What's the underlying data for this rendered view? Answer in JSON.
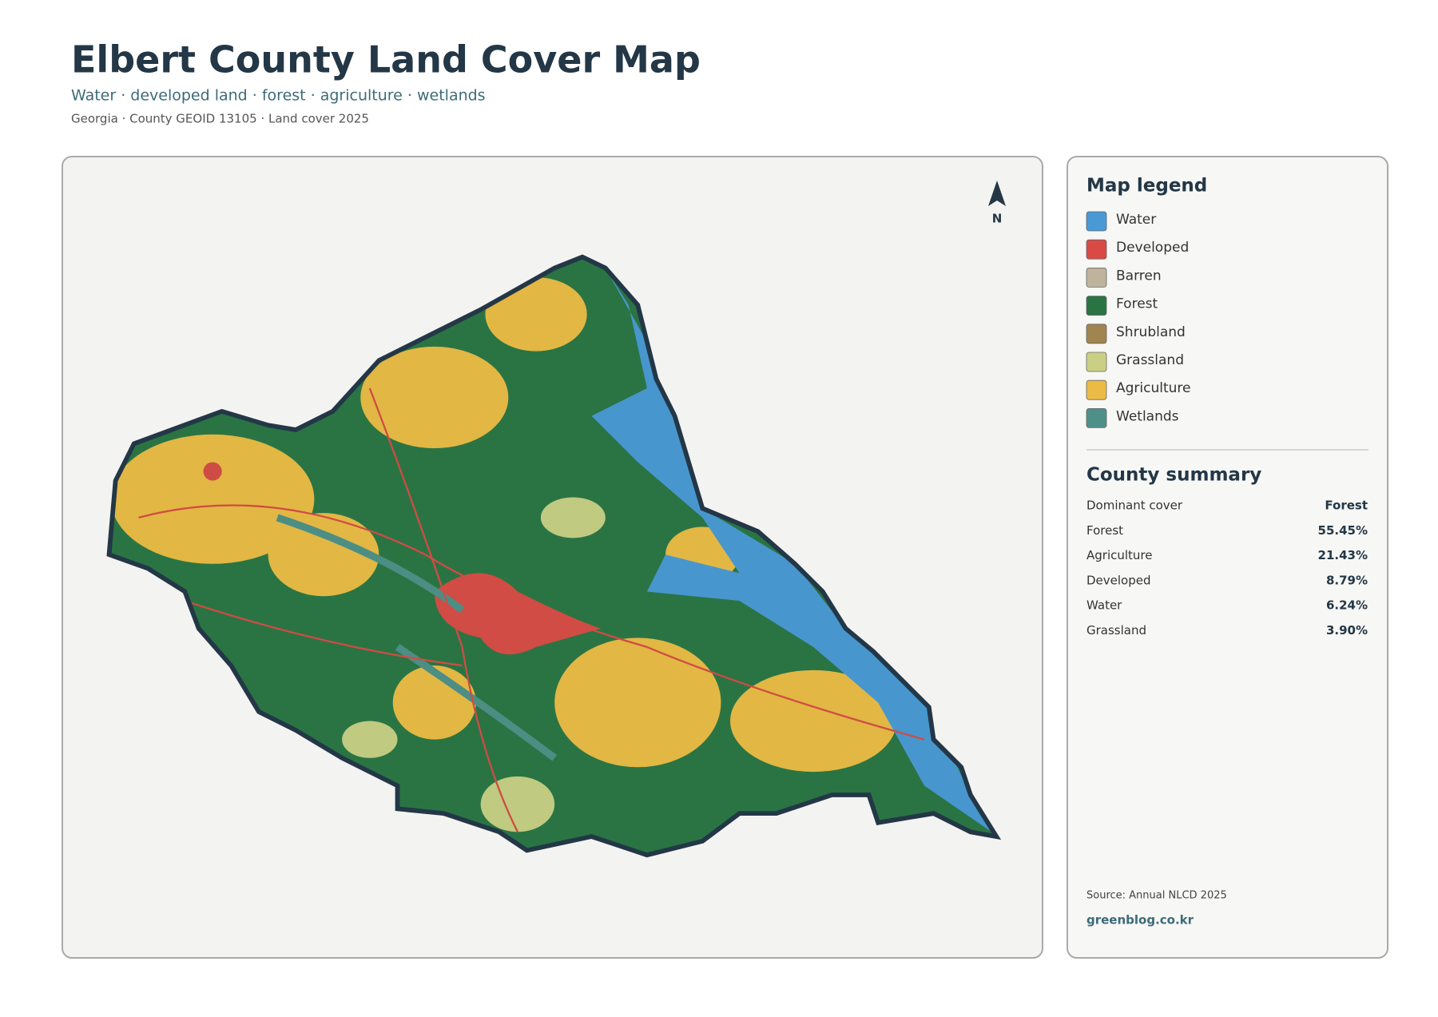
{
  "header": {
    "title": "Elbert County Land Cover Map",
    "subtitle": "Water · developed land · forest · agriculture · wetlands",
    "meta": "Georgia · County GEOID 13105 · Land cover 2025"
  },
  "map": {
    "north_label": "N"
  },
  "legend": {
    "title": "Map legend",
    "items": [
      {
        "label": "Water",
        "color": "#4a98d6"
      },
      {
        "label": "Developed",
        "color": "#d94a45"
      },
      {
        "label": "Barren",
        "color": "#bfb39e"
      },
      {
        "label": "Forest",
        "color": "#2a7444"
      },
      {
        "label": "Shrubland",
        "color": "#a08550"
      },
      {
        "label": "Grassland",
        "color": "#c9cf85"
      },
      {
        "label": "Agriculture",
        "color": "#ecbb45"
      },
      {
        "label": "Wetlands",
        "color": "#4e9088"
      }
    ]
  },
  "summary": {
    "title": "County summary",
    "rows": [
      [
        "Dominant cover",
        "Forest"
      ],
      [
        "Forest",
        "55.45%"
      ],
      [
        "Agriculture",
        "21.43%"
      ],
      [
        "Developed",
        "8.79%"
      ],
      [
        "Water",
        "6.24%"
      ],
      [
        "Grassland",
        "3.90%"
      ]
    ]
  },
  "footer": {
    "source": "Source: Annual NLCD 2025",
    "site": "greenblog.co.kr"
  }
}
